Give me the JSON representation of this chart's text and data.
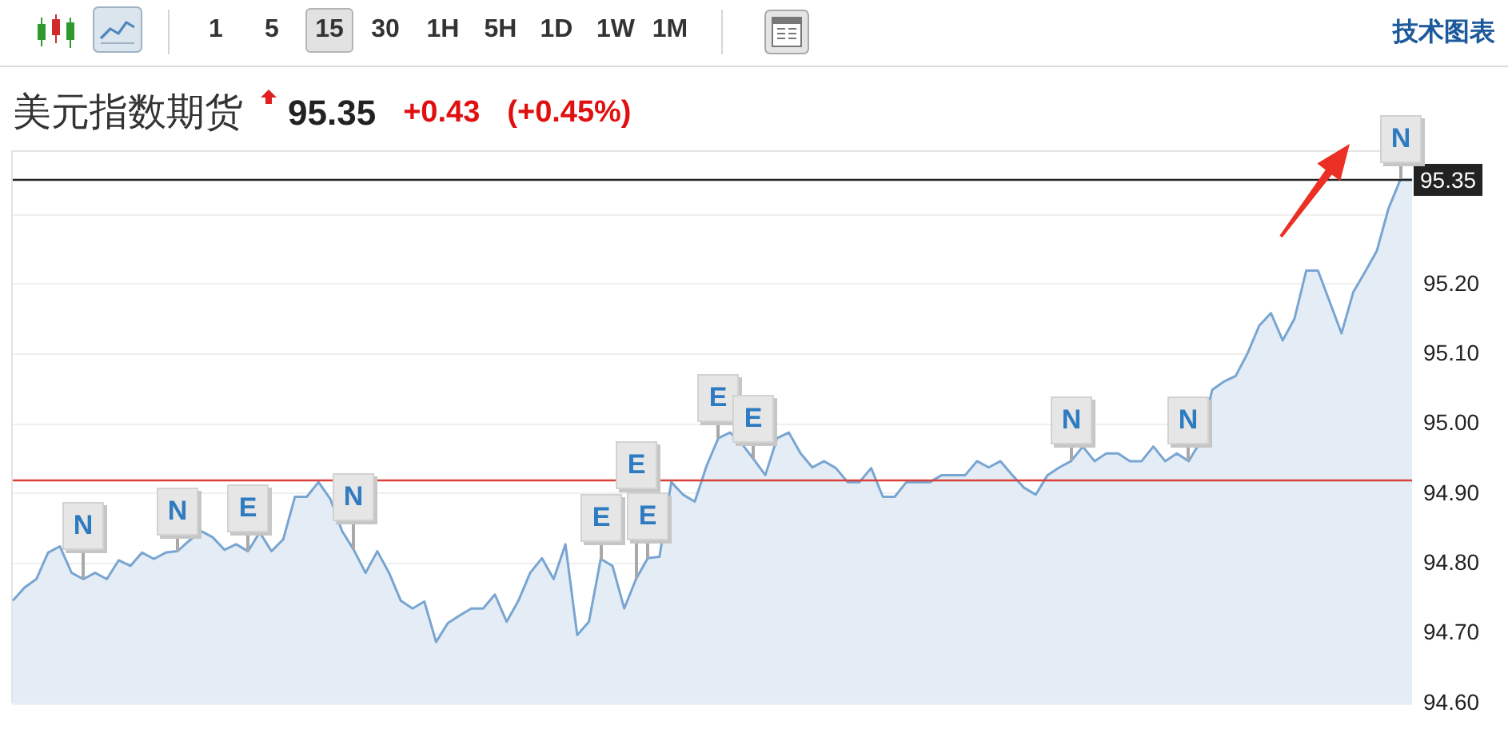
{
  "chart_data": {
    "type": "area",
    "title": "美元指数期货",
    "subtitle": "95.35 +0.43 (+0.45%)",
    "categories": [
      null,
      null,
      null,
      null,
      null,
      null,
      null,
      null,
      null,
      null,
      null,
      null,
      null,
      null,
      null,
      null,
      null,
      null,
      null,
      null,
      null,
      null,
      null,
      null,
      null,
      null,
      null,
      null,
      null,
      null,
      null,
      null,
      null,
      null,
      null,
      null,
      null,
      null,
      null,
      null,
      null,
      null,
      null,
      null,
      null,
      null,
      null,
      null,
      null,
      null,
      null,
      null,
      null,
      null,
      null,
      null,
      null,
      null,
      null,
      null,
      null,
      null,
      null,
      null,
      null,
      null,
      null,
      null,
      null,
      null,
      null,
      null,
      null,
      null,
      null,
      null,
      null,
      null,
      null,
      null,
      null,
      null,
      null,
      null,
      null,
      null,
      null,
      null,
      null,
      null,
      null,
      null,
      null,
      null,
      null,
      null,
      null,
      null,
      null,
      null,
      null,
      null,
      null,
      null,
      null,
      null,
      null,
      null,
      null,
      null,
      null,
      null,
      null,
      null,
      null,
      null,
      null,
      null,
      null,
      null
    ],
    "color": "#78a5d1",
    "values": [
      94.747,
      94.766,
      94.778,
      94.816,
      94.825,
      94.787,
      94.778,
      94.787,
      94.778,
      94.805,
      94.797,
      94.816,
      94.807,
      94.816,
      94.818,
      94.833,
      94.847,
      94.838,
      94.82,
      94.828,
      94.818,
      94.845,
      94.818,
      94.835,
      94.896,
      94.896,
      94.917,
      94.893,
      94.847,
      94.82,
      94.787,
      94.818,
      94.787,
      94.747,
      94.736,
      94.746,
      94.688,
      94.715,
      94.726,
      94.736,
      94.736,
      94.756,
      94.717,
      94.747,
      94.787,
      94.808,
      94.778,
      94.828,
      94.698,
      94.717,
      94.807,
      94.797,
      94.736,
      94.778,
      94.808,
      94.81,
      94.917,
      94.899,
      94.889,
      94.94,
      94.98,
      94.988,
      94.972,
      94.95,
      94.927,
      94.98,
      94.988,
      94.958,
      94.938,
      94.947,
      94.937,
      94.917,
      94.917,
      94.937,
      94.896,
      94.896,
      94.917,
      94.917,
      94.917,
      94.927,
      94.927,
      94.927,
      94.947,
      94.938,
      94.947,
      94.927,
      94.909,
      94.899,
      94.927,
      94.938,
      94.947,
      94.968,
      94.947,
      94.958,
      94.958,
      94.947,
      94.947,
      94.968,
      94.947,
      94.958,
      94.947,
      94.975,
      95.049,
      95.061,
      95.069,
      95.101,
      95.141,
      95.159,
      95.12,
      95.151,
      95.22,
      95.22,
      95.175,
      95.13,
      95.189,
      95.218,
      95.248,
      95.309,
      95.35,
      95.35
    ],
    "ylim": [
      94.6,
      95.39
    ],
    "yticks": [
      {
        "value": 94.6,
        "label": "94.60"
      },
      {
        "value": 94.7,
        "label": "94.70"
      },
      {
        "value": 94.8,
        "label": "94.80"
      },
      {
        "value": 94.9,
        "label": "94.90"
      },
      {
        "value": 95.0,
        "label": "95.00"
      },
      {
        "value": 95.1,
        "label": "95.10"
      },
      {
        "value": 95.2,
        "label": "95.20"
      },
      {
        "value": 95.3,
        "label": null
      }
    ],
    "grid": "y",
    "tick_labels": "y",
    "ref_lines": [
      {
        "axis": "y",
        "value": 95.35,
        "label": "95.35",
        "color": "#222222"
      },
      {
        "axis": "y",
        "value": 94.92,
        "color": "#d9403a"
      }
    ],
    "annotations": [
      "1 5 15 30 1H 5H 1D 1W 1M",
      "技术图表",
      "N",
      "N",
      "E",
      "N",
      "E",
      "E",
      "E",
      "E",
      "E",
      "N",
      "N",
      "N"
    ]
  }
}
